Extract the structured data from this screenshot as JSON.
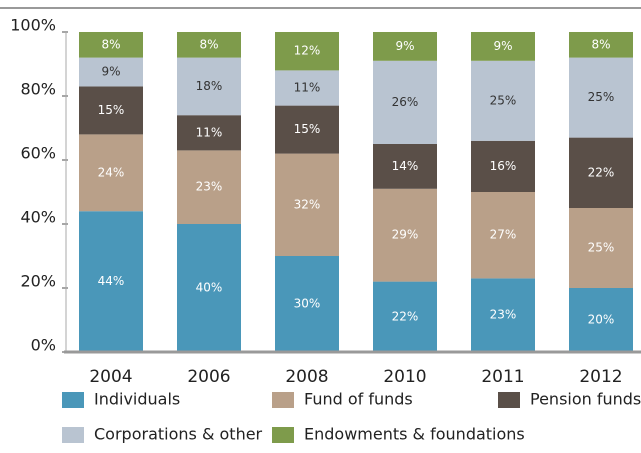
{
  "chart_data": {
    "type": "stacked_bar",
    "categories": [
      "2004",
      "2006",
      "2008",
      "2010",
      "2011",
      "2012"
    ],
    "series": [
      {
        "name": "Individuals",
        "color": "#4a97b9",
        "label_color": "#ffffff",
        "values": [
          44,
          40,
          30,
          22,
          23,
          20
        ],
        "value_labels": [
          "44%",
          "40%",
          "30%",
          "22%",
          "23%",
          "20%"
        ]
      },
      {
        "name": "Fund of funds",
        "color": "#b9a089",
        "label_color": "#ffffff",
        "values": [
          24,
          23,
          32,
          29,
          27,
          25
        ],
        "value_labels": [
          "24%",
          "23%",
          "32%",
          "29%",
          "27%",
          "25%"
        ]
      },
      {
        "name": "Pension funds",
        "color": "#5a4f48",
        "label_color": "#ffffff",
        "values": [
          15,
          11,
          15,
          14,
          16,
          22
        ],
        "value_labels": [
          "15%",
          "11%",
          "15%",
          "14%",
          "16%",
          "22%"
        ]
      },
      {
        "name": "Corporations & other",
        "color": "#b9c4d1",
        "label_color": "#333333",
        "values": [
          9,
          18,
          11,
          26,
          25,
          25
        ],
        "value_labels": [
          "9%",
          "18%",
          "11%",
          "26%",
          "25%",
          "25%"
        ]
      },
      {
        "name": "Endowments & foundations",
        "color": "#7e9b4b",
        "label_color": "#ffffff",
        "values": [
          8,
          8,
          12,
          9,
          9,
          8
        ],
        "value_labels": [
          "8%",
          "8%",
          "12%",
          "9%",
          "9%",
          "8%"
        ]
      }
    ],
    "ylim": [
      0,
      100
    ],
    "yticks": [
      {
        "value": 0,
        "label": "0%"
      },
      {
        "value": 20,
        "label": "20%"
      },
      {
        "value": 40,
        "label": "40%"
      },
      {
        "value": 60,
        "label": "60%"
      },
      {
        "value": 80,
        "label": "80%"
      },
      {
        "value": 100,
        "label": "100%"
      }
    ]
  }
}
